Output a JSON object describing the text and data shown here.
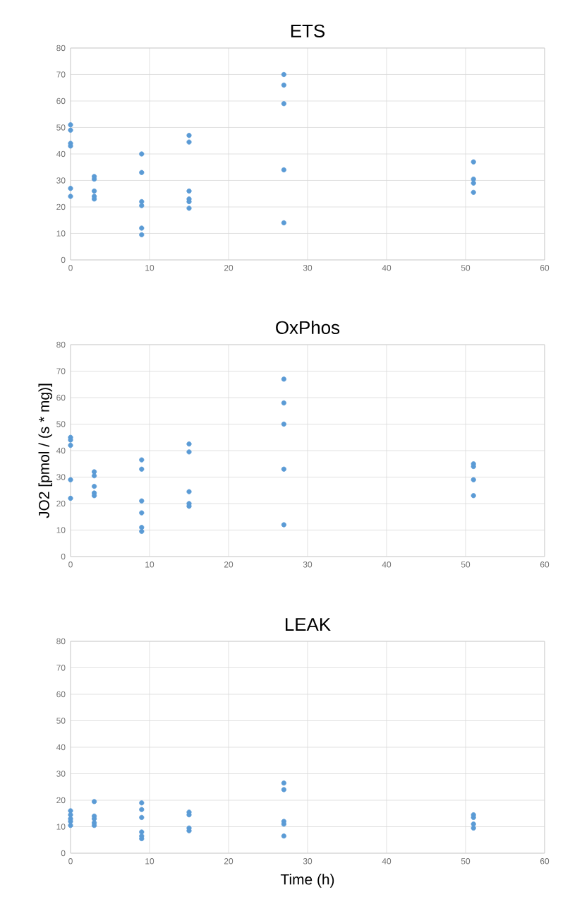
{
  "chart_data": [
    {
      "type": "scatter",
      "title": "ETS",
      "x": [
        0,
        0,
        0,
        0,
        0,
        0,
        3,
        3,
        3,
        3,
        3,
        9,
        9,
        9,
        9,
        9,
        9,
        15,
        15,
        15,
        15,
        15,
        15,
        27,
        27,
        27,
        27,
        27,
        51,
        51,
        51,
        51
      ],
      "values": [
        51,
        49,
        44,
        43,
        27,
        24,
        31.5,
        30.5,
        26,
        24,
        23,
        40,
        33,
        22,
        20.5,
        12,
        9.5,
        47,
        44.5,
        26,
        23,
        22,
        19.5,
        70,
        66,
        59,
        34,
        14,
        37,
        30.5,
        29,
        25.5
      ],
      "color": "#5b9bd5",
      "marker": "circle",
      "xlim": [
        0,
        60
      ],
      "ylim": [
        0,
        80
      ],
      "xticks": [
        0,
        10,
        20,
        30,
        40,
        50,
        60
      ],
      "yticks": [
        0,
        10,
        20,
        30,
        40,
        50,
        60,
        70,
        80
      ],
      "grid": true
    },
    {
      "type": "scatter",
      "title": "OxPhos",
      "ylabel": "JO2 [pmol / (s * mg)]",
      "x": [
        0,
        0,
        0,
        0,
        0,
        3,
        3,
        3,
        3,
        3,
        9,
        9,
        9,
        9,
        9,
        9,
        15,
        15,
        15,
        15,
        15,
        27,
        27,
        27,
        27,
        27,
        51,
        51,
        51,
        51
      ],
      "values": [
        45,
        44,
        42,
        29,
        22,
        32,
        30.5,
        26.5,
        24,
        23,
        36.5,
        33,
        21,
        16.5,
        11,
        9.5,
        42.5,
        39.5,
        24.5,
        20,
        19,
        67,
        58,
        50,
        33,
        12,
        35,
        34,
        29,
        23
      ],
      "color": "#5b9bd5",
      "marker": "circle",
      "xlim": [
        0,
        60
      ],
      "ylim": [
        0,
        80
      ],
      "xticks": [
        0,
        10,
        20,
        30,
        40,
        50,
        60
      ],
      "yticks": [
        0,
        10,
        20,
        30,
        40,
        50,
        60,
        70,
        80
      ],
      "grid": true
    },
    {
      "type": "scatter",
      "title": "LEAK",
      "xlabel": "Time (h)",
      "x": [
        0,
        0,
        0,
        0,
        0,
        3,
        3,
        3,
        3,
        3,
        9,
        9,
        9,
        9,
        9,
        9,
        15,
        15,
        15,
        15,
        27,
        27,
        27,
        27,
        27,
        51,
        51,
        51,
        51
      ],
      "values": [
        16,
        14.5,
        13,
        12,
        10.5,
        19.5,
        14,
        13,
        11.5,
        10.5,
        19,
        16.5,
        13.5,
        8,
        6.5,
        5.5,
        15.5,
        14.5,
        9.5,
        8.5,
        26.5,
        24,
        12,
        11,
        6.5,
        14.5,
        13.5,
        11,
        9.5
      ],
      "color": "#5b9bd5",
      "marker": "circle",
      "xlim": [
        0,
        60
      ],
      "ylim": [
        0,
        80
      ],
      "xticks": [
        0,
        10,
        20,
        30,
        40,
        50,
        60
      ],
      "yticks": [
        0,
        10,
        20,
        30,
        40,
        50,
        60,
        70,
        80
      ],
      "grid": true
    }
  ]
}
